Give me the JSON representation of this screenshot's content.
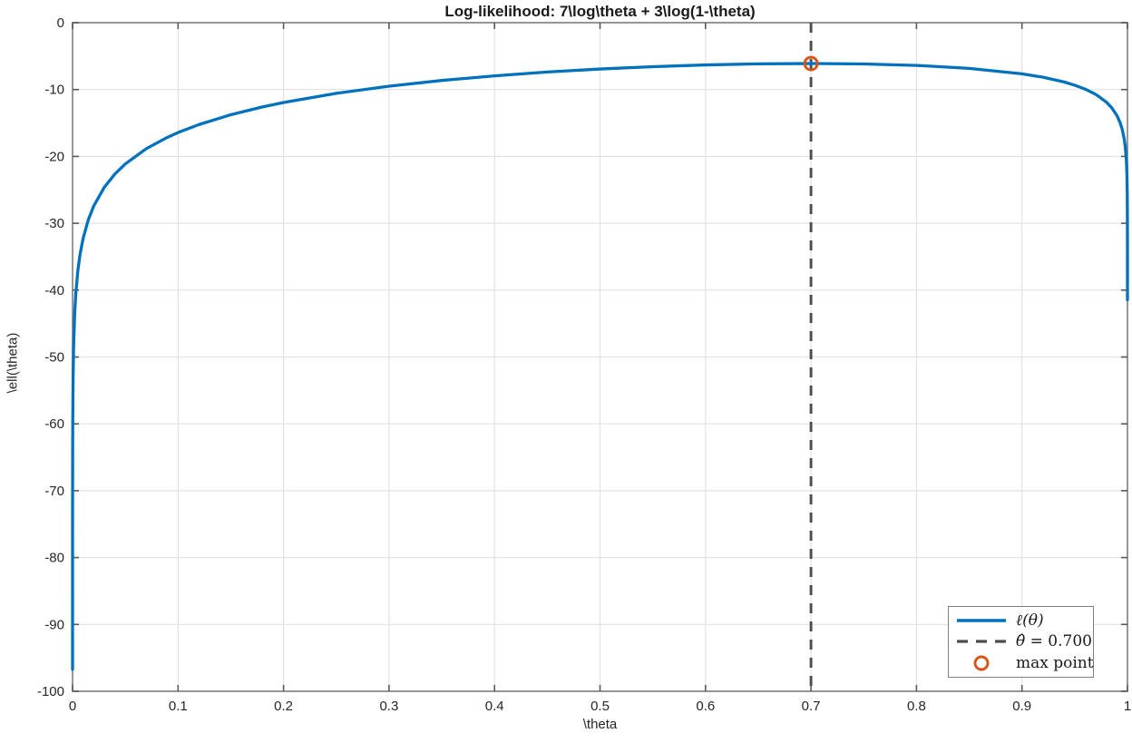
{
  "chart_data": {
    "type": "line",
    "title": "Log-likelihood: 7\\log\\theta + 3\\log(1-\\theta)",
    "xlabel": "\\theta",
    "ylabel": "\\ell(\\theta)",
    "xlim": [
      0,
      1
    ],
    "ylim": [
      -100,
      0
    ],
    "grid": true,
    "x_ticks": {
      "values": [
        0,
        0.1,
        0.2,
        0.3,
        0.4,
        0.5,
        0.6,
        0.7,
        0.8,
        0.9,
        1
      ],
      "labels": [
        "0",
        "0.1",
        "0.2",
        "0.3",
        "0.4",
        "0.5",
        "0.6",
        "0.7",
        "0.8",
        "0.9",
        "1"
      ]
    },
    "y_ticks": {
      "values": [
        0,
        -10,
        -20,
        -30,
        -40,
        -50,
        -60,
        -70,
        -80,
        -90,
        -100
      ],
      "labels": [
        "0",
        "-10",
        "-20",
        "-30",
        "-40",
        "-50",
        "-60",
        "-70",
        "-80",
        "-90",
        "-100"
      ]
    },
    "series": [
      {
        "name": "ℓ(θ)",
        "color": "#0072BD",
        "x": [
          1e-06,
          2e-06,
          5e-06,
          1e-05,
          2e-05,
          5e-05,
          0.0001,
          0.0002,
          0.0005,
          0.001,
          0.002,
          0.003,
          0.005,
          0.007,
          0.01,
          0.015,
          0.02,
          0.03,
          0.04,
          0.05,
          0.07,
          0.09,
          0.1,
          0.12,
          0.15,
          0.18,
          0.2,
          0.25,
          0.3,
          0.35,
          0.4,
          0.45,
          0.5,
          0.55,
          0.6,
          0.65,
          0.7,
          0.75,
          0.8,
          0.85,
          0.9,
          0.92,
          0.94,
          0.95,
          0.96,
          0.97,
          0.98,
          0.985,
          0.99,
          0.993,
          0.995,
          0.997,
          0.998,
          0.999,
          0.9995,
          0.9998,
          0.9999,
          0.99995,
          0.99998,
          0.99999,
          0.999995,
          0.999999
        ],
        "y": [
          -96.71,
          -91.86,
          -85.44,
          -80.59,
          -75.74,
          -69.32,
          -64.47,
          -59.62,
          -53.21,
          -48.36,
          -43.51,
          -40.67,
          -37.1,
          -34.75,
          -32.27,
          -29.44,
          -27.44,
          -24.64,
          -22.65,
          -21.12,
          -18.83,
          -17.14,
          -16.43,
          -15.23,
          -13.77,
          -12.6,
          -11.94,
          -10.57,
          -9.5,
          -8.64,
          -7.95,
          -7.38,
          -6.93,
          -6.58,
          -6.32,
          -6.16,
          -6.11,
          -6.17,
          -6.39,
          -6.83,
          -7.65,
          -8.16,
          -8.87,
          -9.35,
          -9.94,
          -10.73,
          -11.88,
          -12.7,
          -13.89,
          -14.94,
          -15.93,
          -17.45,
          -18.66,
          -20.73,
          -22.81,
          -25.55,
          -27.63,
          -29.71,
          -32.46,
          -34.54,
          -36.62,
          -41.45
        ]
      }
    ],
    "vline": {
      "x": 0.7,
      "color": "#4D4D4D",
      "style": "dashed"
    },
    "max_point": {
      "x": 0.7,
      "y": -6.109,
      "color": "#D95319"
    },
    "legend": {
      "position": "southeast",
      "items": [
        {
          "label": "ℓ(θ)"
        },
        {
          "var": "θ̂",
          "value": "= 0.700"
        },
        {
          "label": "max point"
        }
      ]
    },
    "colors": {
      "curve": "#0072BD",
      "marker": "#D95319",
      "vline": "#4D4D4D",
      "grid": "#E2E2E2",
      "axis_box": "#7F7F7F",
      "tick": "#595959",
      "text": "#262626"
    }
  }
}
